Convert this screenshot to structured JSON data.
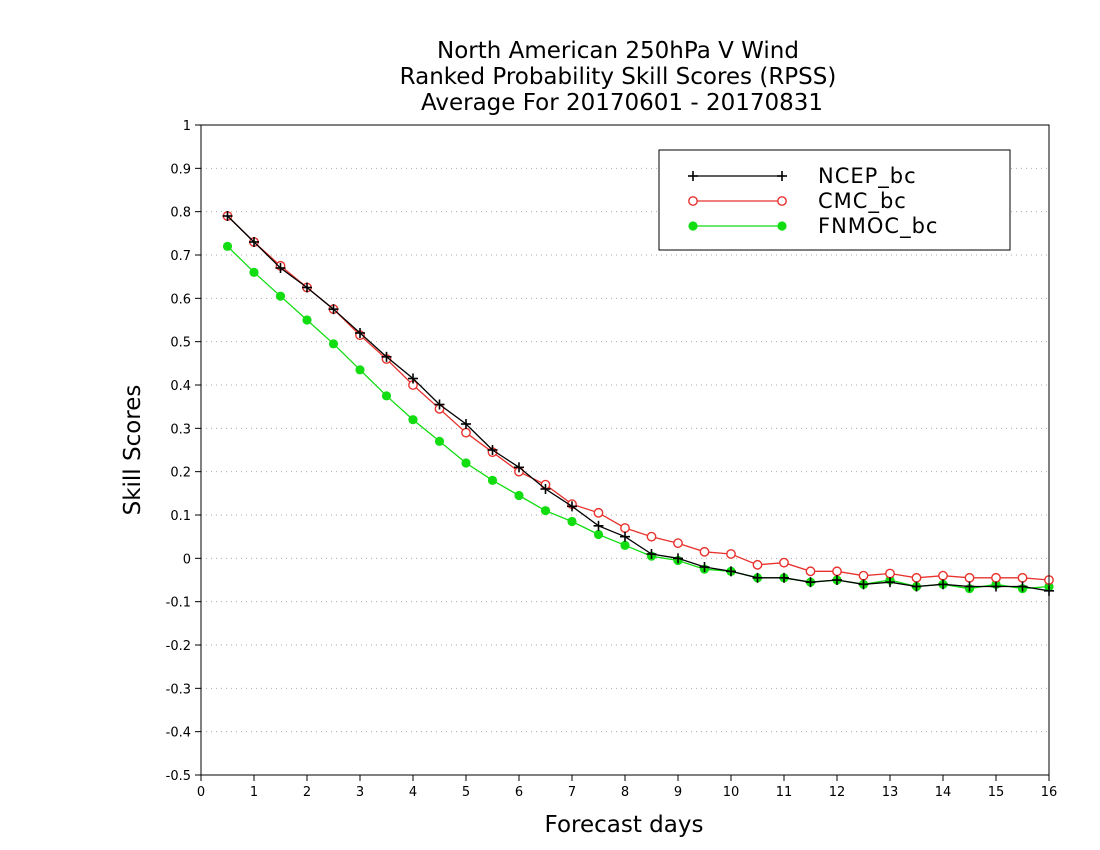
{
  "chart_data": {
    "type": "line",
    "title": [
      "North American 250hPa V Wind",
      "Ranked Probability Skill Scores (RPSS)",
      "Average For 20170601 - 20170831"
    ],
    "xlabel": "Forecast days",
    "ylabel": "Skill Scores",
    "xlim": [
      0,
      16
    ],
    "ylim": [
      -0.5,
      1
    ],
    "x_ticks": [
      "0",
      "1",
      "2",
      "3",
      "4",
      "5",
      "6",
      "7",
      "8",
      "9",
      "10",
      "11",
      "12",
      "13",
      "14",
      "15",
      "16"
    ],
    "y_ticks": [
      "1",
      "0.9",
      "0.8",
      "0.7",
      "0.6",
      "0.5",
      "0.4",
      "0.3",
      "0.2",
      "0.1",
      "0",
      "-0.1",
      "-0.2",
      "-0.3",
      "-0.4",
      "-0.5"
    ],
    "grid": true,
    "legend_position": "top-right",
    "x": [
      0.5,
      1,
      1.5,
      2,
      2.5,
      3,
      3.5,
      4,
      4.5,
      5,
      5.5,
      6,
      6.5,
      7,
      7.5,
      8,
      8.5,
      9,
      9.5,
      10,
      10.5,
      11,
      11.5,
      12,
      12.5,
      13,
      13.5,
      14,
      14.5,
      15,
      15.5,
      16
    ],
    "series": [
      {
        "name": "NCEP_bc",
        "color": "#000000",
        "marker": "plus",
        "values": [
          0.79,
          0.73,
          0.67,
          0.625,
          0.575,
          0.52,
          0.465,
          0.415,
          0.355,
          0.31,
          0.25,
          0.21,
          0.16,
          0.12,
          0.075,
          0.05,
          0.01,
          0.0,
          -0.02,
          -0.03,
          -0.045,
          -0.045,
          -0.055,
          -0.05,
          -0.06,
          -0.055,
          -0.065,
          -0.06,
          -0.065,
          -0.065,
          -0.065,
          -0.075
        ]
      },
      {
        "name": "CMC_bc",
        "color": "#e8322d",
        "marker": "open-circle",
        "values": [
          0.79,
          0.73,
          0.675,
          0.625,
          0.575,
          0.515,
          0.46,
          0.4,
          0.345,
          0.29,
          0.245,
          0.2,
          0.17,
          0.125,
          0.105,
          0.07,
          0.05,
          0.035,
          0.015,
          0.01,
          -0.015,
          -0.01,
          -0.03,
          -0.03,
          -0.04,
          -0.035,
          -0.045,
          -0.04,
          -0.045,
          -0.045,
          -0.045,
          -0.05
        ]
      },
      {
        "name": "FNMOC_bc",
        "color": "#11dd11",
        "marker": "filled-circle",
        "values": [
          0.72,
          0.66,
          0.605,
          0.55,
          0.495,
          0.435,
          0.375,
          0.32,
          0.27,
          0.22,
          0.18,
          0.145,
          0.11,
          0.085,
          0.055,
          0.03,
          0.005,
          -0.005,
          -0.025,
          -0.03,
          -0.045,
          -0.045,
          -0.055,
          -0.05,
          -0.06,
          -0.05,
          -0.065,
          -0.06,
          -0.07,
          -0.06,
          -0.07,
          -0.065
        ]
      }
    ]
  }
}
